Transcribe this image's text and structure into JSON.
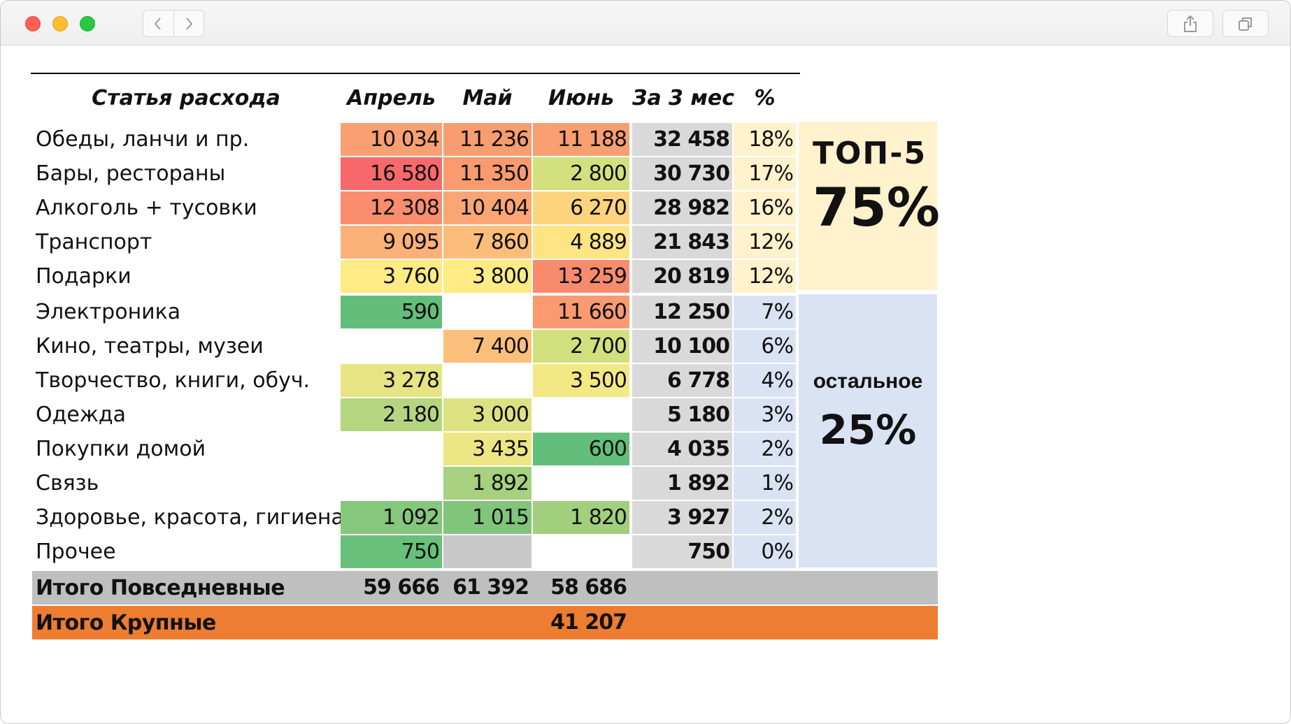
{
  "window": {
    "buttons": {
      "back": "chevron-left-icon",
      "forward": "chevron-right-icon",
      "share": "share-icon",
      "tabs": "tabs-icon"
    }
  },
  "table": {
    "headers": {
      "item": "Статья расхода",
      "apr": "Апрель",
      "may": "Май",
      "jun": "Июнь",
      "total": "За 3 мес",
      "pct": "%"
    },
    "rows": [
      {
        "label": "Обеды, ланчи и пр.",
        "apr": "10 034",
        "may": "11 236",
        "jun": "11 188",
        "total": "32 458",
        "pct": "18%",
        "apr_color": "#f9a073",
        "may_color": "#f89d70",
        "jun_color": "#f89e71"
      },
      {
        "label": "Бары, рестораны",
        "apr": "16 580",
        "may": "11 350",
        "jun": "2 800",
        "total": "30 730",
        "pct": "17%",
        "apr_color": "#f8696b",
        "may_color": "#f99b6f",
        "jun_color": "#d3e07e"
      },
      {
        "label": "Алкоголь + тусовки",
        "apr": "12 308",
        "may": "10 404",
        "jun": "6 270",
        "total": "28 982",
        "pct": "16%",
        "apr_color": "#f98d6e",
        "may_color": "#faa674",
        "jun_color": "#fdd37e"
      },
      {
        "label": "Транспорт",
        "apr": "9 095",
        "may": "7 860",
        "jun": "4 889",
        "total": "21 843",
        "pct": "12%",
        "apr_color": "#fbb178",
        "may_color": "#fcbd7b",
        "jun_color": "#fee482"
      },
      {
        "label": "Подарки",
        "apr": "3 760",
        "may": "3 800",
        "jun": "13 259",
        "total": "20 819",
        "pct": "12%",
        "apr_color": "#feeb84",
        "may_color": "#feeb84",
        "jun_color": "#f88b6e"
      },
      {
        "label": "Электроника",
        "apr": "590",
        "may": "",
        "jun": "11 660",
        "total": "12 250",
        "pct": "7%",
        "apr_color": "#63be7b",
        "may_color": "",
        "jun_color": "#f99a70"
      },
      {
        "label": "Кино, театры, музеи",
        "apr": "",
        "may": "7 400",
        "jun": "2 700",
        "total": "10 100",
        "pct": "6%",
        "apr_color": "",
        "may_color": "#fcbf7b",
        "jun_color": "#d1df7e"
      },
      {
        "label": "Творчество, книги, обуч.",
        "apr": "3 278",
        "may": "",
        "jun": "3 500",
        "total": "6 778",
        "pct": "4%",
        "apr_color": "#e6e483",
        "may_color": "",
        "jun_color": "#f4e884"
      },
      {
        "label": "Одежда",
        "apr": "2 180",
        "may": "3 000",
        "jun": "",
        "total": "5 180",
        "pct": "3%",
        "apr_color": "#b6d57f",
        "may_color": "#dce281",
        "jun_color": ""
      },
      {
        "label": "Покупки домой",
        "apr": "",
        "may": "3 435",
        "jun": "600",
        "total": "4 035",
        "pct": "2%",
        "apr_color": "",
        "may_color": "#eee684",
        "jun_color": "#63be7b"
      },
      {
        "label": "Связь",
        "apr": "",
        "may": "1 892",
        "jun": "",
        "total": "1 892",
        "pct": "1%",
        "apr_color": "",
        "may_color": "#a7d17e",
        "jun_color": ""
      },
      {
        "label": "Здоровье, красота, гигиена",
        "apr": "1 092",
        "may": "1 015",
        "jun": "1 820",
        "total": "3 927",
        "pct": "2%",
        "apr_color": "#85c77c",
        "may_color": "#81c57b",
        "jun_color": "#a1cf7d"
      },
      {
        "label": "Прочее",
        "apr": "750",
        "may": "",
        "jun": "",
        "total": "750",
        "pct": "0%",
        "apr_color": "#68c07b",
        "may_color": "#c8c8c8",
        "jun_color": ""
      }
    ],
    "top_panel": {
      "title": "ТОП-5",
      "value": "75%"
    },
    "rest_panel": {
      "title": "остальное",
      "value": "25%"
    },
    "summary": {
      "daily": {
        "label": "Итого Повседневные",
        "apr": "59 666",
        "may": "61 392",
        "jun": "58 686"
      },
      "big": {
        "label": "Итого Крупные",
        "apr": "",
        "may": "",
        "jun": "41 207"
      }
    }
  }
}
